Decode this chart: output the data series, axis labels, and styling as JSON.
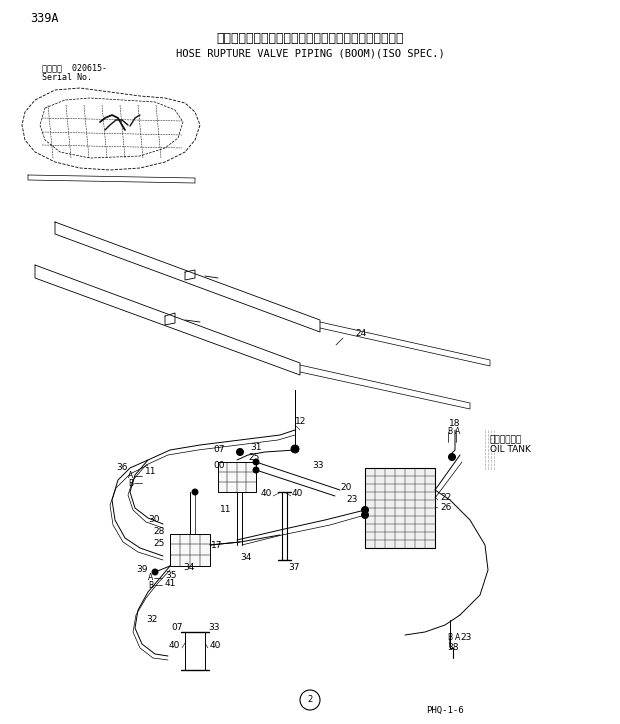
{
  "title_jp": "ホースラプチャーバルブ配管（ブーム）（ＩＳＯ仕様）",
  "title_en": "HOSE RUPTURE VALVE PIPING (BOOM)(ISO SPEC.)",
  "page_num": "339A",
  "serial_label": "通用号機  020615-",
  "serial_label2": "Serial No.",
  "footer": "PHQ-1-6",
  "circle_num": "2",
  "bg_color": "#ffffff",
  "lc": "#000000",
  "tc": "#000000",
  "oil_tank_jp": "オイルタンク",
  "oil_tank_en": "OIL TANK"
}
